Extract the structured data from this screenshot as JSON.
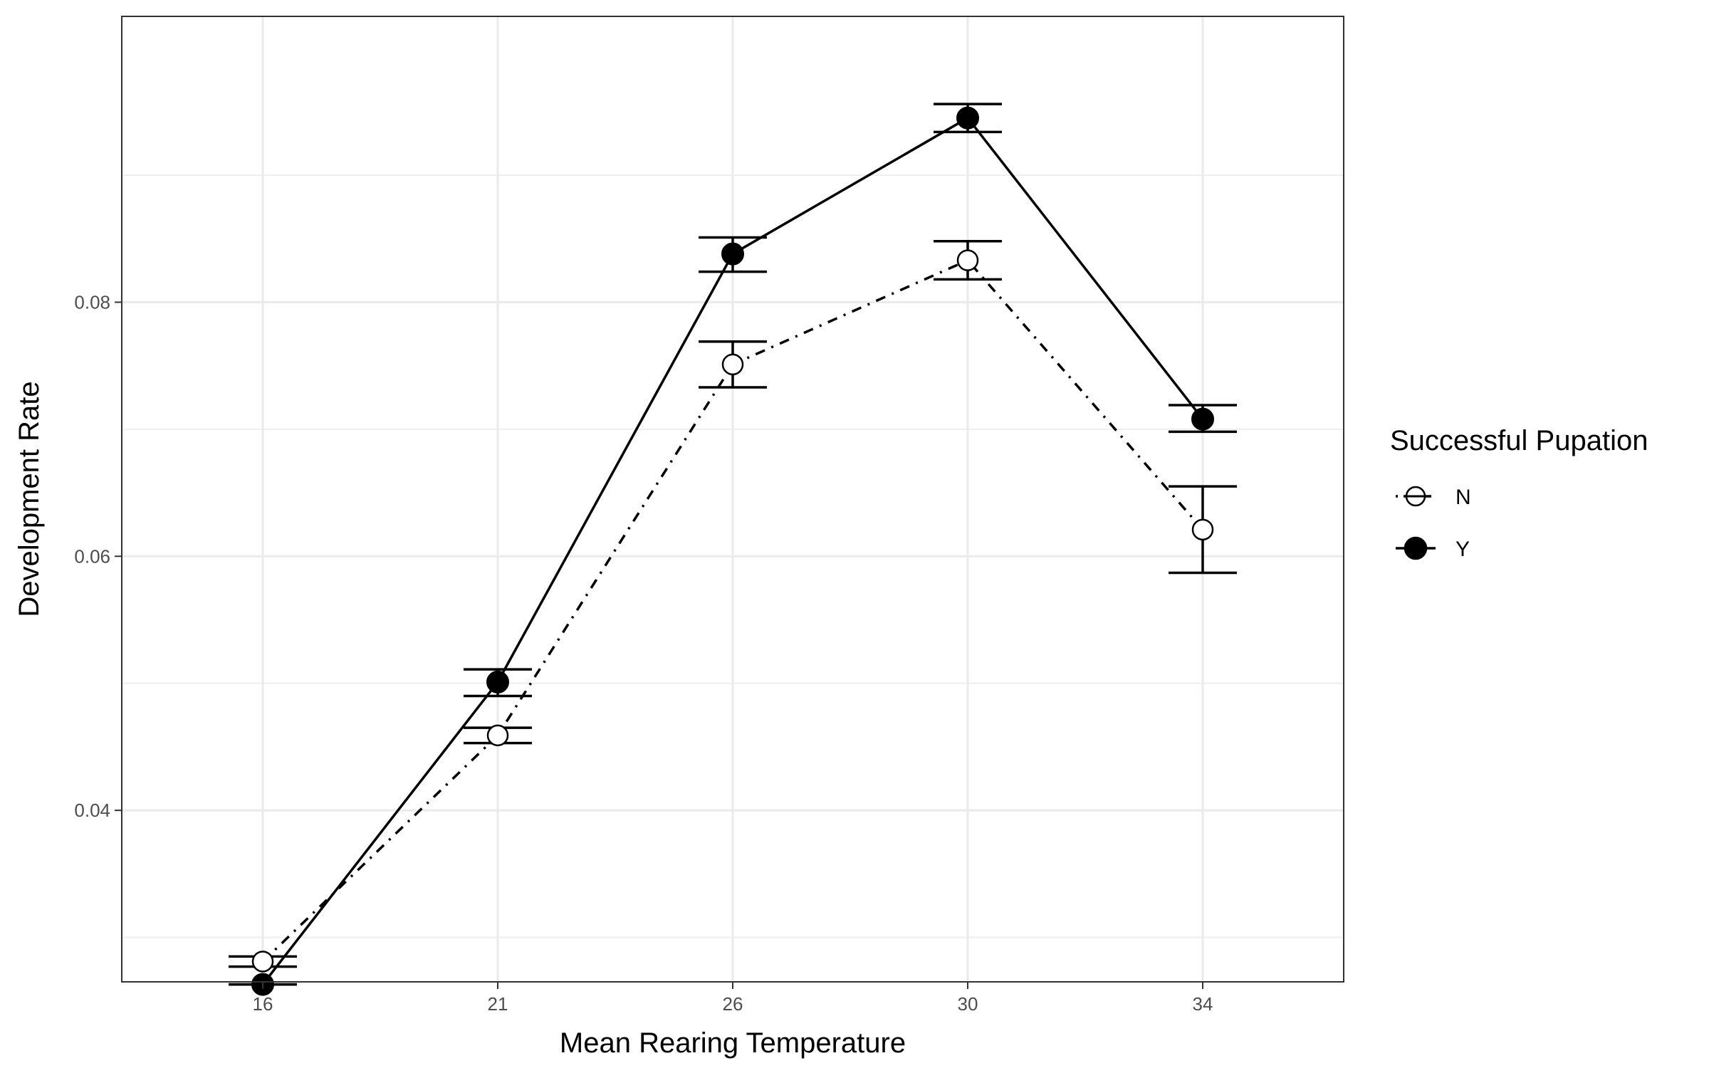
{
  "chart_data": {
    "type": "line",
    "title": "",
    "xlabel": "Mean Rearing Temperature",
    "ylabel": "Development Rate",
    "x": [
      "16",
      "21",
      "26",
      "30",
      "34"
    ],
    "ylim": [
      0.0265,
      0.1025
    ],
    "yticks": [
      "0.04",
      "0.06",
      "0.08"
    ],
    "ytick_values": [
      0.04,
      0.06,
      0.08
    ],
    "grid": true,
    "legend": {
      "title": "Successful Pupation",
      "position": "right"
    },
    "series": [
      {
        "name": "N",
        "marker": "open-circle",
        "line_style": "dash-dot",
        "values": [
          0.0281,
          0.0459,
          0.0751,
          0.0833,
          0.0621
        ],
        "error_low": [
          0.0277,
          0.0453,
          0.0733,
          0.0818,
          0.0587
        ],
        "error_high": [
          0.0285,
          0.0465,
          0.0769,
          0.0848,
          0.0655
        ]
      },
      {
        "name": "Y",
        "marker": "filled-circle",
        "line_style": "solid",
        "values": [
          0.0263,
          0.0501,
          0.0838,
          0.0945,
          0.0708
        ],
        "error_low": [
          0.0263,
          0.049,
          0.0824,
          0.0934,
          0.0698
        ],
        "error_high": [
          0.0263,
          0.0511,
          0.0851,
          0.0956,
          0.0719
        ]
      }
    ],
    "colors": {
      "panel_border": "#333333",
      "grid_major": "#ebebeb",
      "grid_minor": "#ebebeb",
      "ink": "#000000",
      "tick_text": "#4d4d4d"
    }
  }
}
